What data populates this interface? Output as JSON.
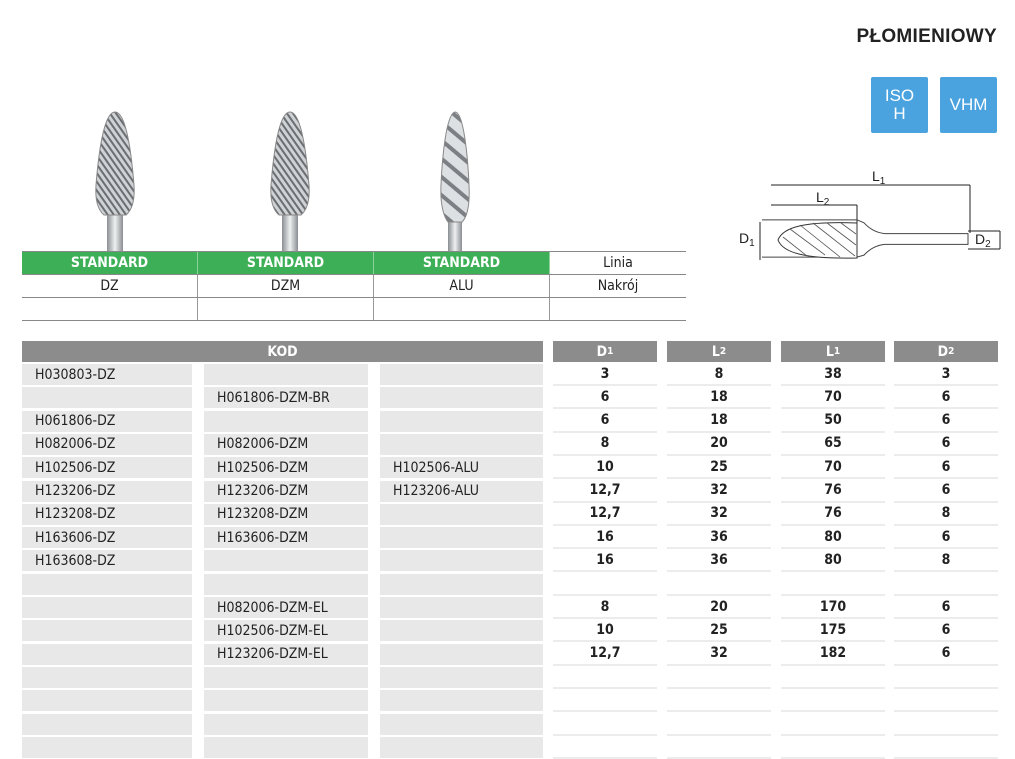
{
  "title": "PŁOMIENIOWY",
  "badges": [
    {
      "label_line1": "ISO",
      "label_line2": "H"
    },
    {
      "label": "VHM"
    }
  ],
  "accent_colors": {
    "green": "#3daf57",
    "blue": "#4aa3df",
    "header_gray": "#8c8c8c"
  },
  "diagram": {
    "labels": {
      "L1": "L",
      "L1_sub": "1",
      "L2": "L",
      "L2_sub": "2",
      "D1": "D",
      "D1_sub": "1",
      "D2": "D",
      "D2_sub": "2"
    }
  },
  "types_table": {
    "line_row": [
      "STANDARD",
      "STANDARD",
      "STANDARD",
      "Linia"
    ],
    "cut_row": [
      "DZ",
      "DZM",
      "ALU",
      "Nakrój"
    ],
    "empty_row": [
      "",
      "",
      "",
      ""
    ]
  },
  "main_table": {
    "kod_header": "KOD",
    "dim_headers": [
      {
        "letter": "D",
        "sub": "1"
      },
      {
        "letter": "L",
        "sub": "2"
      },
      {
        "letter": "L",
        "sub": "1"
      },
      {
        "letter": "D",
        "sub": "2"
      }
    ],
    "rows": [
      {
        "dz": "H030803-DZ",
        "dzm": "",
        "alu": "",
        "d1": "3",
        "l2": "8",
        "l1": "38",
        "d2": "3"
      },
      {
        "dz": "",
        "dzm": "H061806-DZM-BR",
        "alu": "",
        "d1": "6",
        "l2": "18",
        "l1": "70",
        "d2": "6"
      },
      {
        "dz": "H061806-DZ",
        "dzm": "",
        "alu": "",
        "d1": "6",
        "l2": "18",
        "l1": "50",
        "d2": "6"
      },
      {
        "dz": "H082006-DZ",
        "dzm": "H082006-DZM",
        "alu": "",
        "d1": "8",
        "l2": "20",
        "l1": "65",
        "d2": "6"
      },
      {
        "dz": "H102506-DZ",
        "dzm": "H102506-DZM",
        "alu": "H102506-ALU",
        "d1": "10",
        "l2": "25",
        "l1": "70",
        "d2": "6"
      },
      {
        "dz": "H123206-DZ",
        "dzm": "H123206-DZM",
        "alu": "H123206-ALU",
        "d1": "12,7",
        "l2": "32",
        "l1": "76",
        "d2": "6"
      },
      {
        "dz": "H123208-DZ",
        "dzm": "H123208-DZM",
        "alu": "",
        "d1": "12,7",
        "l2": "32",
        "l1": "76",
        "d2": "8"
      },
      {
        "dz": "H163606-DZ",
        "dzm": "H163606-DZM",
        "alu": "",
        "d1": "16",
        "l2": "36",
        "l1": "80",
        "d2": "6"
      },
      {
        "dz": "H163608-DZ",
        "dzm": "",
        "alu": "",
        "d1": "16",
        "l2": "36",
        "l1": "80",
        "d2": "8"
      },
      {
        "dz": "",
        "dzm": "",
        "alu": "",
        "d1": "",
        "l2": "",
        "l1": "",
        "d2": ""
      },
      {
        "dz": "",
        "dzm": "H082006-DZM-EL",
        "alu": "",
        "d1": "8",
        "l2": "20",
        "l1": "170",
        "d2": "6"
      },
      {
        "dz": "",
        "dzm": "H102506-DZM-EL",
        "alu": "",
        "d1": "10",
        "l2": "25",
        "l1": "175",
        "d2": "6"
      },
      {
        "dz": "",
        "dzm": "H123206-DZM-EL",
        "alu": "",
        "d1": "12,7",
        "l2": "32",
        "l1": "182",
        "d2": "6"
      },
      {
        "dz": "",
        "dzm": "",
        "alu": "",
        "d1": "",
        "l2": "",
        "l1": "",
        "d2": ""
      },
      {
        "dz": "",
        "dzm": "",
        "alu": "",
        "d1": "",
        "l2": "",
        "l1": "",
        "d2": ""
      },
      {
        "dz": "",
        "dzm": "",
        "alu": "",
        "d1": "",
        "l2": "",
        "l1": "",
        "d2": ""
      },
      {
        "dz": "",
        "dzm": "",
        "alu": "",
        "d1": "",
        "l2": "",
        "l1": "",
        "d2": ""
      }
    ]
  }
}
